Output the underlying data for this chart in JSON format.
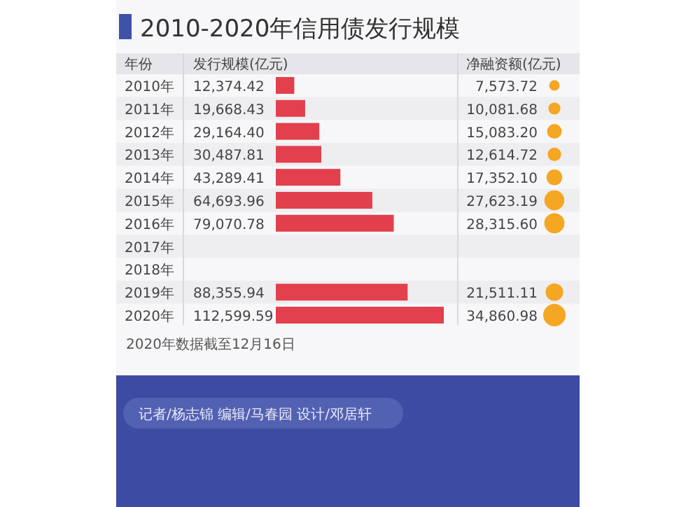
{
  "chart_data": [
    {
      "type": "bar",
      "orientation": "horizontal",
      "title": "2010-2020年信用债发行规模",
      "ylabel": "年份",
      "xlabel": "发行规模(亿元)",
      "categories": [
        "2010年",
        "2011年",
        "2012年",
        "2013年",
        "2014年",
        "2015年",
        "2016年",
        "2017年",
        "2018年",
        "2019年",
        "2020年"
      ],
      "values": [
        12374.42,
        19668.43,
        29164.4,
        30487.81,
        43289.41,
        64693.96,
        79070.78,
        null,
        null,
        88355.94,
        112599.59
      ],
      "value_labels": [
        "12,374.42",
        "19,668.43",
        "29,164.40",
        "30,487.81",
        "43,289.41",
        "64,693.96",
        "79,070.78",
        null,
        null,
        "88,355.94",
        "112,599.59"
      ],
      "color": "#e2404c",
      "annotations": [
        "2020年数据截至12月16日",
        "记者/杨志锦  编辑/马春园  设计/邓居轩"
      ]
    },
    {
      "type": "other",
      "title": "净融资额(亿元)",
      "categories": [
        null,
        null,
        null,
        null,
        null,
        null,
        null,
        null,
        null,
        null,
        null
      ],
      "values": [
        7573.72,
        10081.68,
        15083.2,
        12614.72,
        17352.1,
        27623.19,
        28315.6,
        null,
        null,
        21511.11,
        34860.98
      ],
      "value_labels": [
        "7,573.72",
        "10,081.68",
        "15,083.20",
        "12,614.72",
        "17,352.10",
        "27,623.19",
        "28,315.60",
        null,
        null,
        "21,511.11",
        "34,860.98"
      ],
      "color": "#f5a623"
    }
  ]
}
